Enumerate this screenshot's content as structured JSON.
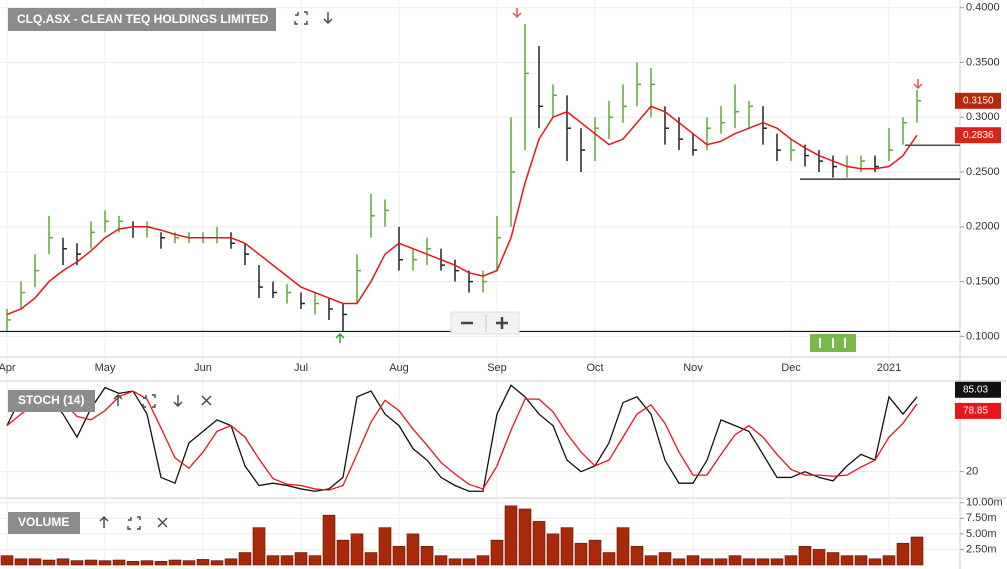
{
  "chart_data": [
    {
      "type": "ohlc",
      "title": "CLQ.ASX - CLEAN TEQ HOLDINGS LIMITED",
      "categories": [
        "Apr",
        null,
        null,
        null,
        null,
        null,
        null,
        "May",
        null,
        null,
        null,
        null,
        null,
        null,
        "Jun",
        null,
        null,
        null,
        null,
        null,
        null,
        "Jul",
        null,
        null,
        null,
        null,
        null,
        null,
        "Aug",
        null,
        null,
        null,
        null,
        null,
        null,
        "Sep",
        null,
        null,
        null,
        null,
        null,
        null,
        "Oct",
        null,
        null,
        null,
        null,
        null,
        null,
        "Nov",
        null,
        null,
        null,
        null,
        null,
        null,
        "Dec",
        null,
        null,
        null,
        null,
        null,
        null,
        "2021",
        null,
        null
      ],
      "high": [
        0.125,
        0.15,
        0.175,
        0.21,
        0.19,
        0.185,
        0.205,
        0.215,
        0.21,
        0.205,
        0.205,
        0.195,
        0.195,
        0.195,
        0.195,
        0.2,
        0.195,
        0.185,
        0.165,
        0.15,
        0.148,
        0.14,
        0.14,
        0.135,
        0.13,
        0.175,
        0.23,
        0.225,
        0.2,
        0.18,
        0.19,
        0.18,
        0.17,
        0.16,
        0.16,
        0.21,
        0.3,
        0.385,
        0.365,
        0.33,
        0.32,
        0.29,
        0.3,
        0.315,
        0.33,
        0.35,
        0.345,
        0.31,
        0.3,
        0.285,
        0.3,
        0.31,
        0.33,
        0.315,
        0.31,
        0.285,
        0.28,
        0.275,
        0.27,
        0.265,
        0.265,
        0.265,
        0.265,
        0.29,
        0.3,
        0.325
      ],
      "low": [
        0.105,
        0.125,
        0.145,
        0.175,
        0.165,
        0.165,
        0.18,
        0.195,
        0.195,
        0.19,
        0.19,
        0.18,
        0.185,
        0.185,
        0.185,
        0.185,
        0.18,
        0.165,
        0.135,
        0.135,
        0.13,
        0.125,
        0.12,
        0.115,
        0.105,
        0.13,
        0.19,
        0.2,
        0.16,
        0.16,
        0.165,
        0.16,
        0.15,
        0.14,
        0.14,
        0.16,
        0.2,
        0.27,
        0.29,
        0.3,
        0.26,
        0.25,
        0.26,
        0.28,
        0.295,
        0.31,
        0.3,
        0.275,
        0.27,
        0.265,
        0.27,
        0.285,
        0.29,
        0.29,
        0.275,
        0.26,
        0.26,
        0.255,
        0.25,
        0.245,
        0.245,
        0.25,
        0.25,
        0.26,
        0.275,
        0.295
      ],
      "close": [
        0.115,
        0.14,
        0.16,
        0.19,
        0.18,
        0.175,
        0.195,
        0.205,
        0.205,
        0.2,
        0.2,
        0.19,
        0.19,
        0.19,
        0.19,
        0.19,
        0.185,
        0.175,
        0.145,
        0.14,
        0.14,
        0.13,
        0.13,
        0.125,
        0.12,
        0.16,
        0.21,
        0.215,
        0.17,
        0.17,
        0.18,
        0.165,
        0.16,
        0.15,
        0.15,
        0.19,
        0.25,
        0.34,
        0.31,
        0.32,
        0.29,
        0.27,
        0.29,
        0.3,
        0.31,
        0.33,
        0.33,
        0.29,
        0.28,
        0.27,
        0.29,
        0.295,
        0.305,
        0.31,
        0.29,
        0.27,
        0.27,
        0.265,
        0.26,
        0.255,
        0.255,
        0.26,
        0.255,
        0.27,
        0.295,
        0.315
      ],
      "close_label": "0.3150",
      "up_color": "#5fa83a",
      "down_color": "#222222",
      "ma": {
        "color": "#e8151b",
        "values": [
          0.12,
          0.125,
          0.135,
          0.15,
          0.16,
          0.168,
          0.178,
          0.19,
          0.198,
          0.2,
          0.2,
          0.197,
          0.193,
          0.19,
          0.19,
          0.19,
          0.19,
          0.185,
          0.175,
          0.165,
          0.155,
          0.145,
          0.14,
          0.135,
          0.13,
          0.13,
          0.15,
          0.175,
          0.185,
          0.18,
          0.175,
          0.17,
          0.165,
          0.158,
          0.155,
          0.16,
          0.19,
          0.24,
          0.28,
          0.3,
          0.305,
          0.295,
          0.285,
          0.275,
          0.28,
          0.295,
          0.31,
          0.305,
          0.295,
          0.285,
          0.275,
          0.278,
          0.285,
          0.29,
          0.295,
          0.29,
          0.28,
          0.272,
          0.265,
          0.26,
          0.255,
          0.253,
          0.253,
          0.255,
          0.265,
          0.2836
        ],
        "last_label": "0.2836"
      },
      "hlines": [
        0.1045,
        0.2745,
        0.2435
      ],
      "ylim": [
        0.083,
        0.407
      ],
      "yticks": [
        {
          "value": 0.1,
          "label": "0.1000"
        },
        {
          "value": 0.15,
          "label": "0.1500"
        },
        {
          "value": 0.2,
          "label": "0.2000"
        },
        {
          "value": 0.25,
          "label": "0.2500"
        },
        {
          "value": 0.3,
          "label": "0.3000"
        },
        {
          "value": 0.35,
          "label": "0.3500"
        },
        {
          "value": 0.4,
          "label": "0.4000"
        }
      ],
      "grid": true
    },
    {
      "type": "line",
      "title": "STOCH (14)",
      "series": [
        {
          "color": "#111111",
          "values": [
            60,
            85,
            88,
            85,
            70,
            50,
            75,
            93,
            88,
            90,
            70,
            15,
            10,
            45,
            55,
            65,
            60,
            25,
            8,
            10,
            8,
            5,
            3,
            5,
            15,
            85,
            90,
            70,
            60,
            40,
            30,
            15,
            8,
            3,
            3,
            70,
            95,
            85,
            70,
            60,
            30,
            20,
            25,
            45,
            80,
            85,
            70,
            30,
            10,
            10,
            30,
            65,
            60,
            55,
            35,
            15,
            15,
            20,
            15,
            12,
            25,
            35,
            30,
            85,
            70,
            85.03
          ]
        },
        {
          "color": "#e8151b",
          "values": [
            60,
            70,
            78,
            86,
            81,
            68,
            65,
            73,
            85,
            90,
            83,
            58,
            32,
            23,
            37,
            55,
            60,
            50,
            31,
            14,
            9,
            8,
            5,
            4,
            8,
            35,
            63,
            82,
            73,
            57,
            43,
            28,
            18,
            9,
            5,
            25,
            56,
            83,
            83,
            72,
            53,
            37,
            25,
            30,
            50,
            70,
            78,
            62,
            37,
            17,
            17,
            35,
            52,
            60,
            50,
            35,
            22,
            17,
            17,
            16,
            17,
            24,
            30,
            50,
            62,
            78.85
          ]
        }
      ],
      "ylim": [
        -2,
        97
      ],
      "yticks": [
        20
      ],
      "grid": true
    },
    {
      "type": "bar",
      "title": "VOLUME",
      "color": "#a8280a",
      "values": [
        1500000,
        1000000,
        1000000,
        800000,
        1000000,
        700000,
        800000,
        700000,
        800000,
        600000,
        700000,
        600000,
        800000,
        700000,
        900000,
        700000,
        1000000,
        2000000,
        6000000,
        1500000,
        1500000,
        2000000,
        1500000,
        8000000,
        4000000,
        5000000,
        2000000,
        6000000,
        3000000,
        5000000,
        3000000,
        1500000,
        1000000,
        1000000,
        1500000,
        4000000,
        9500000,
        9000000,
        7000000,
        5000000,
        6000000,
        3500000,
        4000000,
        2000000,
        6000000,
        3000000,
        1500000,
        2000000,
        1000000,
        1500000,
        1000000,
        1000000,
        1500000,
        1000000,
        1000000,
        1000000,
        1500000,
        3000000,
        2500000,
        2000000,
        1500000,
        1500000,
        1000000,
        1500000,
        3500000,
        4500000
      ],
      "ylim": [
        0,
        10600000
      ],
      "yticks": [
        {
          "value": 2500000,
          "label": "2.50m"
        },
        {
          "value": 5000000,
          "label": "5.00m"
        },
        {
          "value": 7500000,
          "label": "7.50m"
        },
        {
          "value": 10000000,
          "label": "10.00m"
        }
      ],
      "grid": true
    }
  ]
}
